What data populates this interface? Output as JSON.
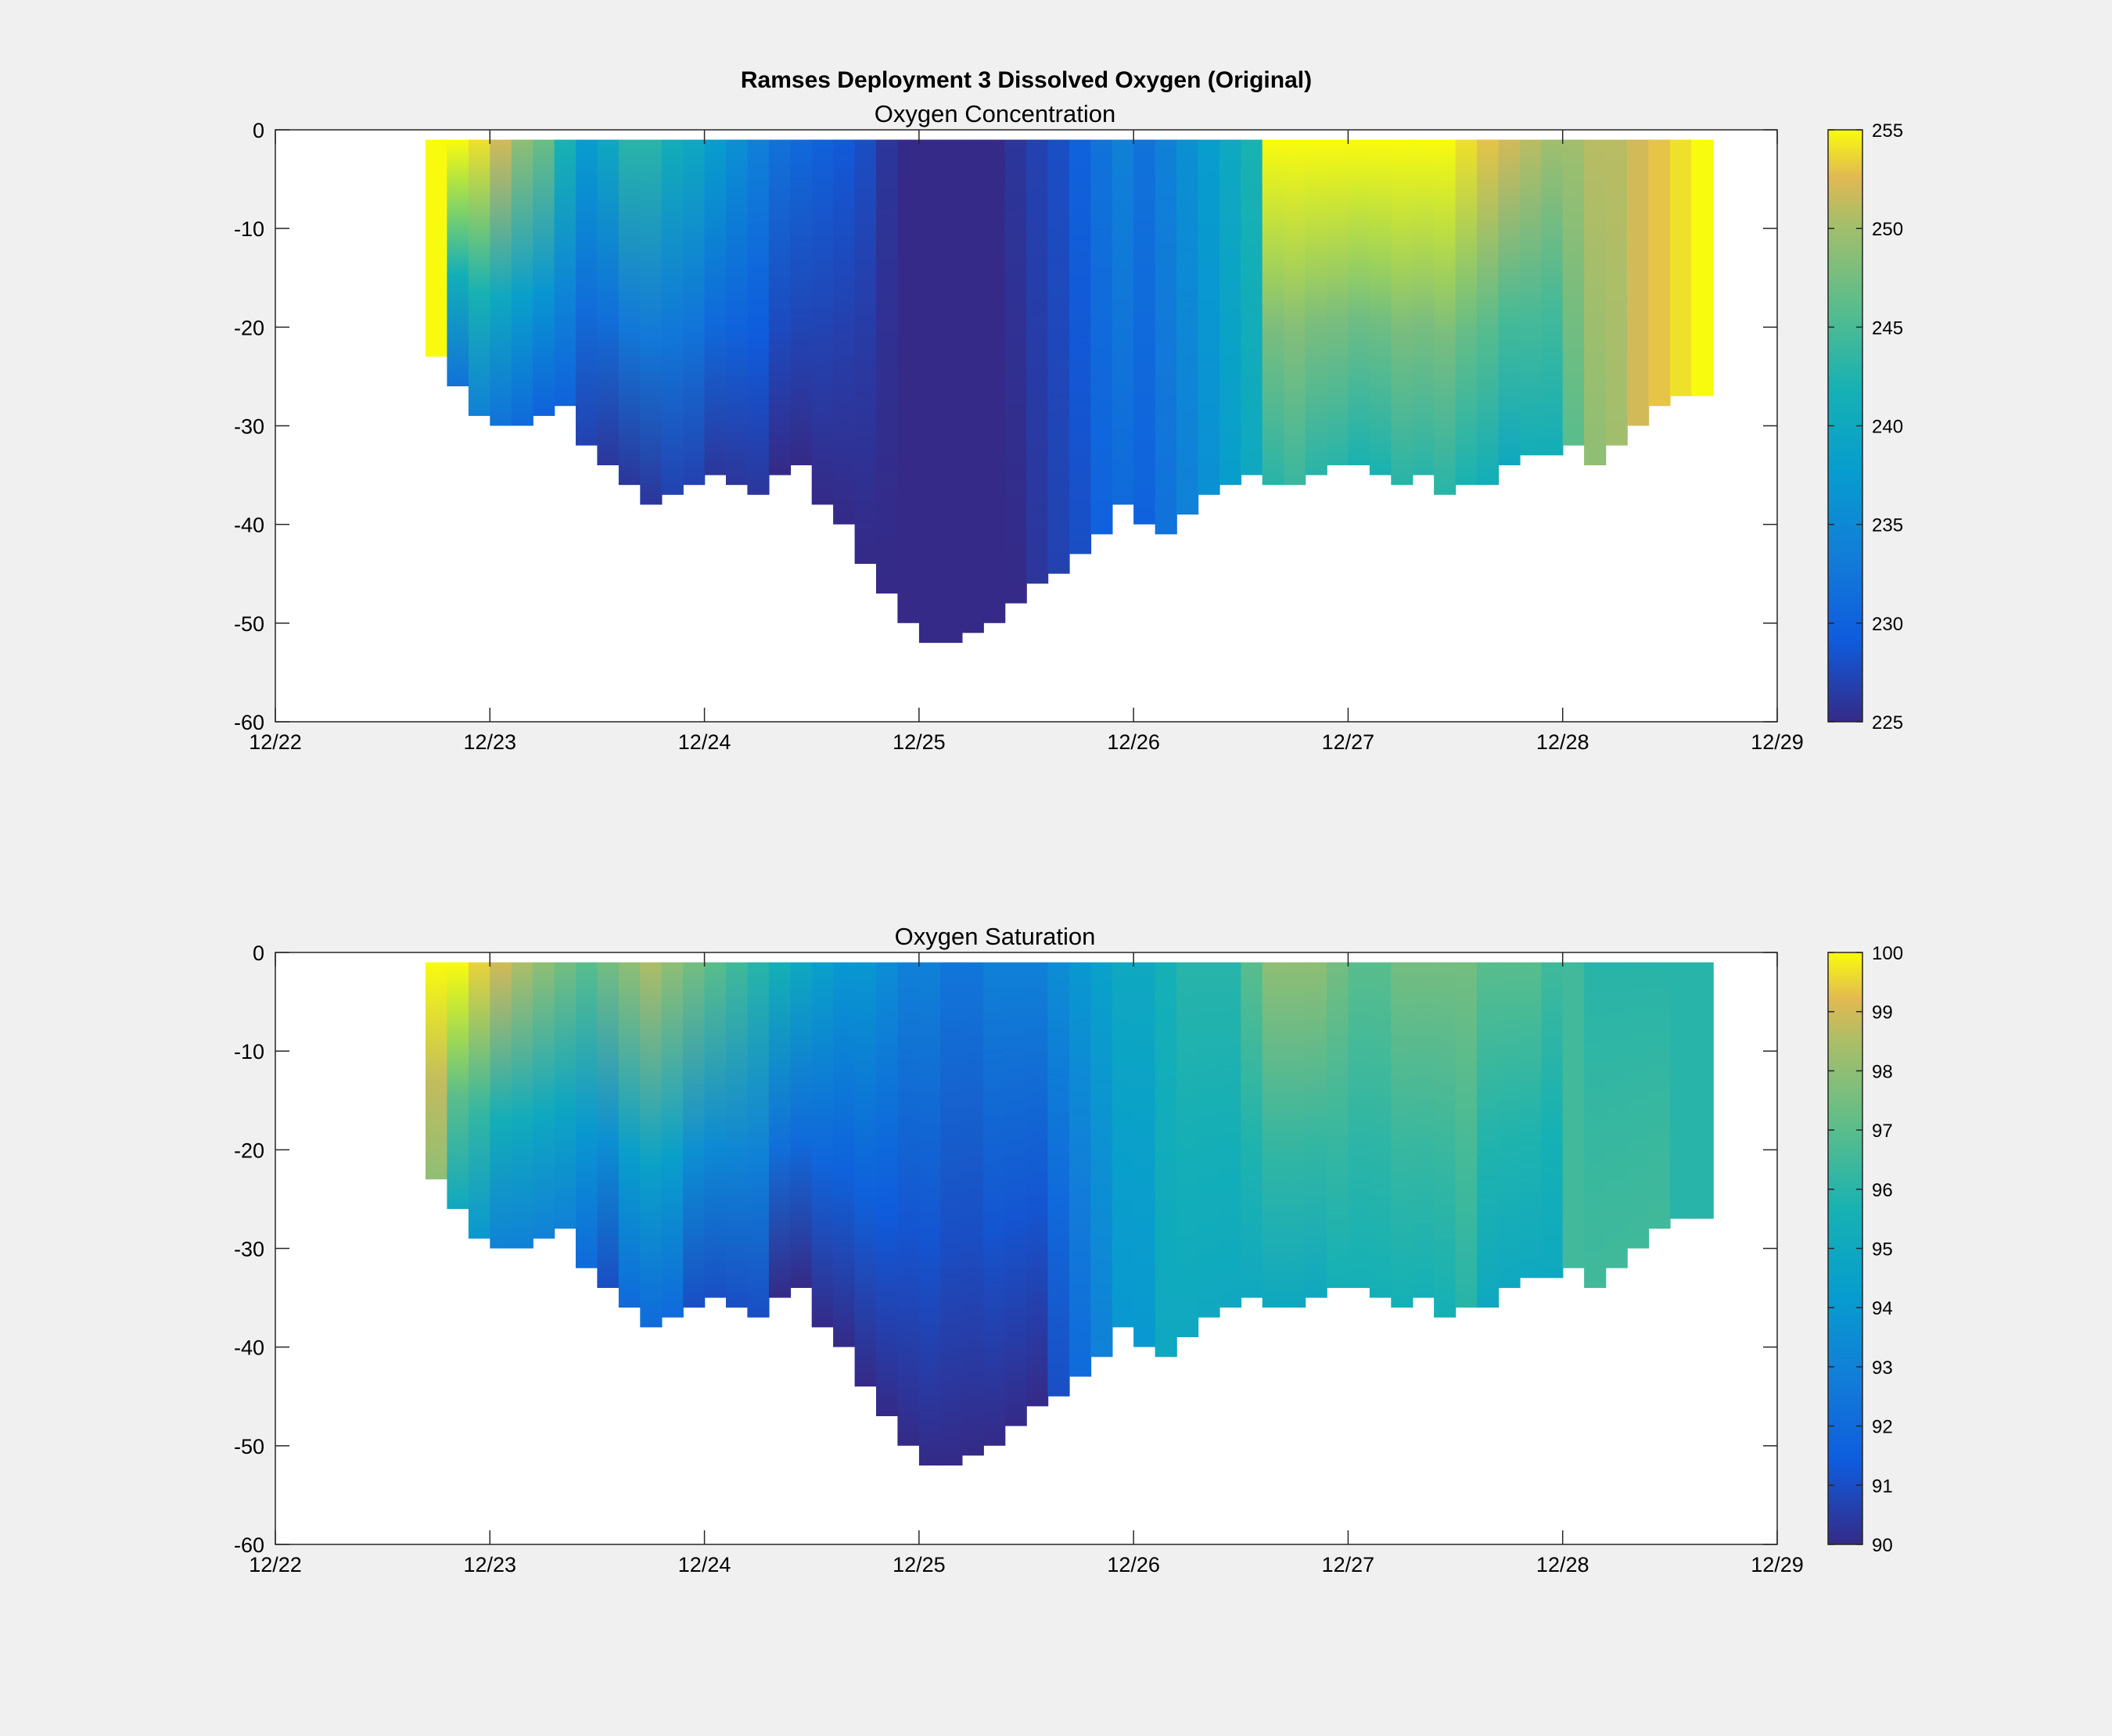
{
  "figure": {
    "title": "Ramses Deployment 3 Dissolved Oxygen (Original)"
  },
  "chart_data": [
    {
      "type": "scatter",
      "title": "Oxygen Concentration",
      "xlabel": "",
      "ylabel": "",
      "x_tick_labels": [
        "12/22",
        "12/23",
        "12/24",
        "12/25",
        "12/26",
        "12/27",
        "12/28",
        "12/29"
      ],
      "xlim": [
        "12/22",
        "12/29"
      ],
      "y_ticks": [
        0,
        -10,
        -20,
        -30,
        -40,
        -50,
        -60
      ],
      "ylim": [
        -60,
        0
      ],
      "colorbar": {
        "ticks": [
          255,
          250,
          245,
          240,
          235,
          230,
          225
        ],
        "clim": [
          225,
          255
        ],
        "colormap": "parula"
      },
      "x_days": [
        0.7,
        0.8,
        0.9,
        1.0,
        1.1,
        1.2,
        1.3,
        1.4,
        1.5,
        1.6,
        1.7,
        1.8,
        1.9,
        2.0,
        2.1,
        2.2,
        2.3,
        2.4,
        2.5,
        2.6,
        2.7,
        2.8,
        2.9,
        3.0,
        3.1,
        3.2,
        3.3,
        3.4,
        3.5,
        3.6,
        3.7,
        3.8,
        3.9,
        4.0,
        4.1,
        4.2,
        4.3,
        4.4,
        4.5,
        4.6,
        4.7,
        4.8,
        4.9,
        5.0,
        5.1,
        5.2,
        5.3,
        5.4,
        5.5,
        5.6,
        5.7,
        5.8,
        5.9,
        6.0,
        6.1,
        6.2,
        6.3,
        6.4,
        6.5,
        6.6,
        6.65
      ],
      "max_depth": [
        -23,
        -26,
        -29,
        -30,
        -30,
        -29,
        -28,
        -32,
        -34,
        -36,
        -38,
        -37,
        -36,
        -35,
        -36,
        -37,
        -35,
        -34,
        -38,
        -40,
        -44,
        -47,
        -50,
        -52,
        -52,
        -51,
        -50,
        -48,
        -46,
        -45,
        -43,
        -41,
        -38,
        -40,
        -41,
        -39,
        -37,
        -36,
        -35,
        -36,
        -36,
        -35,
        -34,
        -34,
        -35,
        -36,
        -35,
        -37,
        -36,
        -36,
        -34,
        -33,
        -33,
        -32,
        -34,
        -32,
        -30,
        -28,
        -27,
        -27,
        -27
      ],
      "surface_value": [
        255,
        255,
        254,
        252,
        249,
        247,
        242,
        238,
        240,
        243,
        243,
        241,
        240,
        238,
        236,
        234,
        232,
        231,
        230,
        229,
        228,
        226,
        225,
        225,
        225,
        225,
        225,
        226,
        227,
        228,
        230,
        232,
        234,
        232,
        234,
        236,
        238,
        240,
        242,
        255,
        255,
        255,
        255,
        255,
        255,
        255,
        255,
        255,
        254,
        253,
        252,
        251,
        250,
        250,
        251,
        251,
        252,
        253,
        254,
        255,
        255
      ],
      "bottom_value": [
        255,
        232,
        234,
        232,
        231,
        230,
        230,
        227,
        226,
        226,
        226,
        227,
        227,
        226,
        226,
        226,
        225,
        225,
        225,
        225,
        225,
        225,
        225,
        225,
        225,
        225,
        225,
        225,
        226,
        227,
        228,
        230,
        231,
        230,
        232,
        234,
        236,
        238,
        240,
        243,
        244,
        243,
        243,
        242,
        242,
        243,
        243,
        243,
        242,
        241,
        240,
        241,
        241,
        246,
        249,
        250,
        252,
        253,
        254,
        255,
        255
      ]
    },
    {
      "type": "scatter",
      "title": "Oxygen Saturation",
      "xlabel": "",
      "ylabel": "",
      "x_tick_labels": [
        "12/22",
        "12/23",
        "12/24",
        "12/25",
        "12/26",
        "12/27",
        "12/28",
        "12/29"
      ],
      "xlim": [
        "12/22",
        "12/29"
      ],
      "y_ticks": [
        0,
        -10,
        -20,
        -30,
        -40,
        -50,
        -60
      ],
      "ylim": [
        -60,
        0
      ],
      "colorbar": {
        "ticks": [
          100,
          99,
          98,
          97,
          96,
          95,
          94,
          93,
          92,
          91,
          90
        ],
        "clim": [
          90,
          100
        ],
        "colormap": "parula"
      },
      "x_days": [
        0.7,
        0.8,
        0.9,
        1.0,
        1.1,
        1.2,
        1.3,
        1.4,
        1.5,
        1.6,
        1.7,
        1.8,
        1.9,
        2.0,
        2.1,
        2.2,
        2.3,
        2.4,
        2.5,
        2.6,
        2.7,
        2.8,
        2.9,
        3.0,
        3.1,
        3.2,
        3.3,
        3.4,
        3.5,
        3.6,
        3.7,
        3.8,
        3.9,
        4.0,
        4.1,
        4.2,
        4.3,
        4.4,
        4.5,
        4.6,
        4.7,
        4.8,
        4.9,
        5.0,
        5.1,
        5.2,
        5.3,
        5.4,
        5.5,
        5.6,
        5.7,
        5.8,
        5.9,
        6.0,
        6.1,
        6.2,
        6.3,
        6.4,
        6.5,
        6.6,
        6.65
      ],
      "max_depth": [
        -23,
        -26,
        -29,
        -30,
        -30,
        -29,
        -28,
        -32,
        -34,
        -36,
        -38,
        -37,
        -36,
        -35,
        -36,
        -37,
        -35,
        -34,
        -38,
        -40,
        -44,
        -47,
        -50,
        -52,
        -52,
        -51,
        -50,
        -48,
        -46,
        -45,
        -43,
        -41,
        -38,
        -40,
        -41,
        -39,
        -37,
        -36,
        -35,
        -36,
        -36,
        -35,
        -34,
        -34,
        -35,
        -36,
        -35,
        -37,
        -36,
        -36,
        -34,
        -33,
        -33,
        -32,
        -34,
        -32,
        -30,
        -28,
        -27,
        -27,
        -27
      ],
      "surface_value": [
        100,
        100,
        99.5,
        99,
        98.5,
        98,
        97.5,
        97,
        97.5,
        98,
        98.5,
        98,
        97.5,
        97,
        96.5,
        96,
        95.5,
        95,
        94.5,
        94,
        94,
        93.5,
        93,
        93,
        92.5,
        92.5,
        93,
        93,
        93,
        93.5,
        94,
        94.5,
        95,
        95,
        95.5,
        96,
        96,
        96,
        97,
        98,
        98,
        98,
        97.5,
        97,
        97,
        97.5,
        97.5,
        97.5,
        97.5,
        97,
        97,
        97,
        96.5,
        96.5,
        96,
        96,
        96,
        96,
        96,
        96,
        96
      ],
      "bottom_value": [
        98,
        95,
        94,
        93,
        93,
        93,
        93,
        92,
        91,
        92,
        92,
        92,
        91,
        91,
        91,
        91,
        90,
        90,
        90,
        90,
        90,
        90,
        90,
        90,
        90,
        90,
        90,
        90,
        90,
        91,
        92,
        93,
        94,
        94,
        95,
        95,
        95,
        95,
        95,
        95,
        95,
        95,
        95.5,
        95.5,
        95.5,
        95.5,
        95.5,
        95.5,
        96,
        95,
        95,
        95,
        95,
        96.5,
        96.5,
        96.5,
        96.5,
        96.5,
        96,
        96,
        96
      ]
    }
  ]
}
